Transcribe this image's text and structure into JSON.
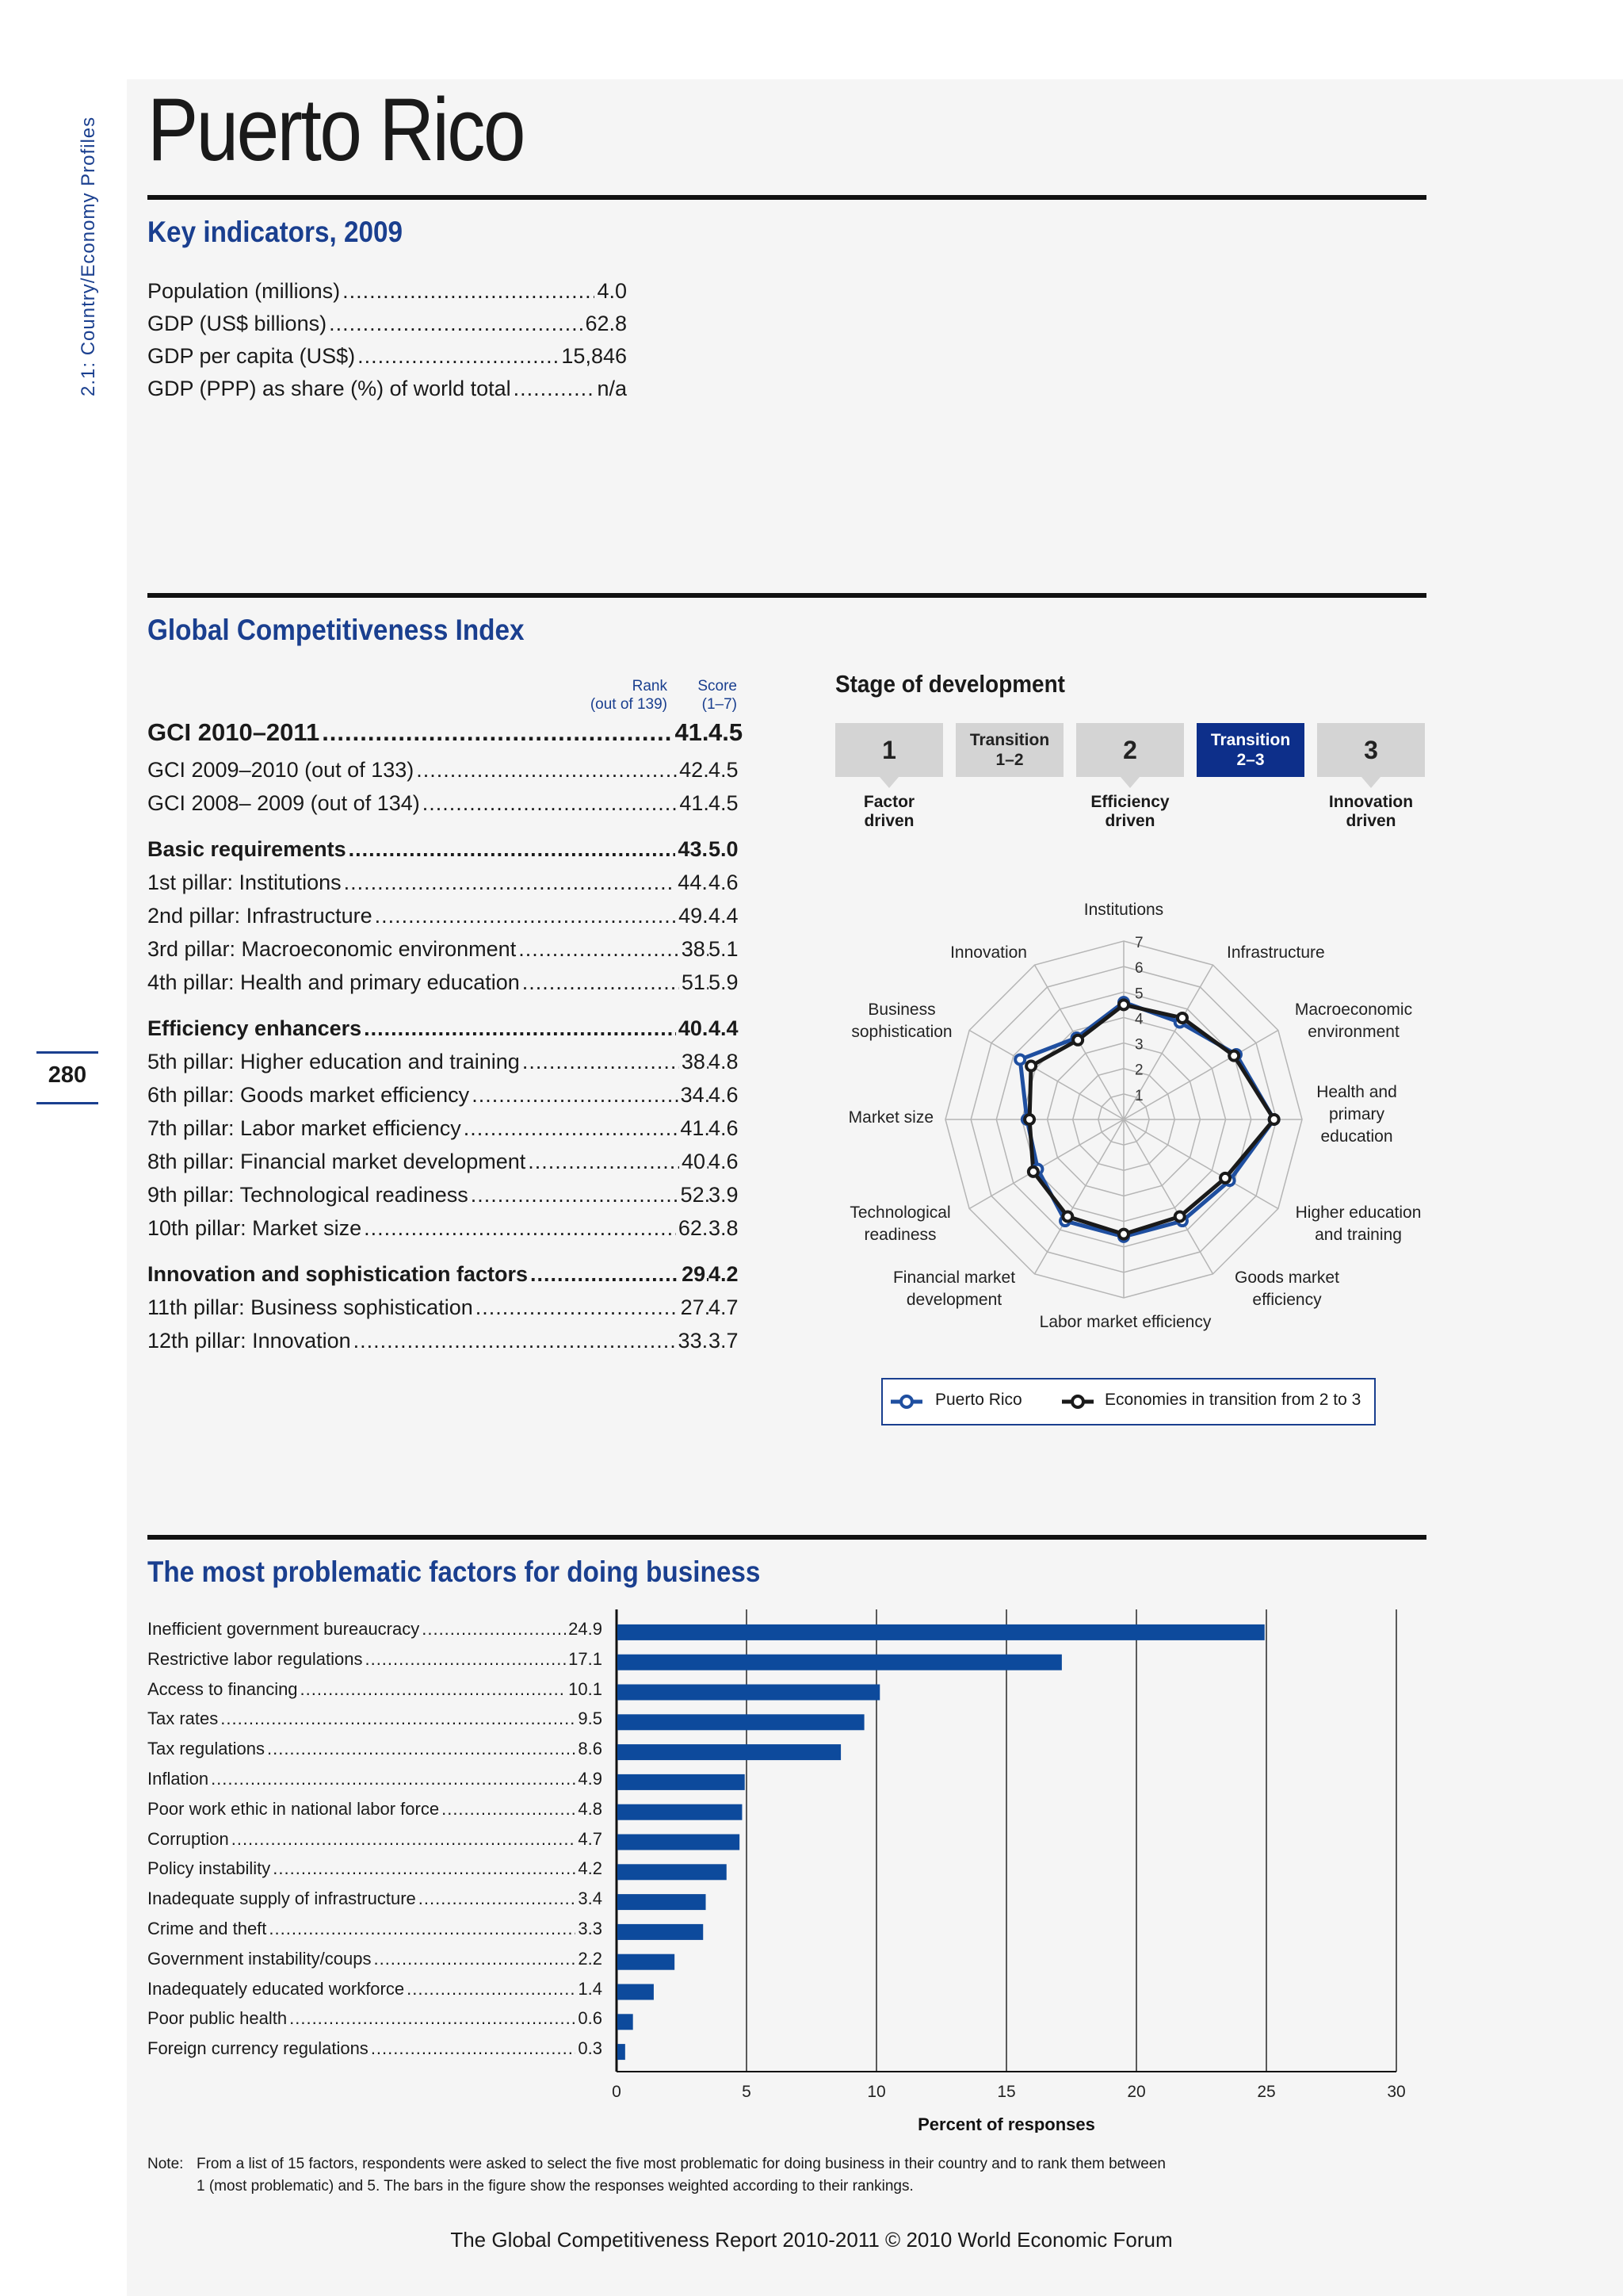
{
  "side_label": "2.1: Country/Economy Profiles",
  "page_number": "280",
  "title": "Puerto Rico",
  "key_indicators": {
    "heading": "Key indicators, 2009",
    "rows": [
      {
        "label": "Population (millions)",
        "value": "4.0"
      },
      {
        "label": "GDP (US$ billions)",
        "value": "62.8"
      },
      {
        "label": "GDP per capita (US$)",
        "value": "15,846"
      },
      {
        "label": "GDP (PPP) as share (%) of world total",
        "value": "n/a"
      }
    ]
  },
  "gci": {
    "heading": "Global Competitiveness Index",
    "rank_header": [
      "Rank",
      "(out of 139)"
    ],
    "score_header": [
      "Score",
      "(1–7)"
    ],
    "rows": [
      {
        "label": "GCI 2010–2011",
        "rank": "41",
        "score": "4.5",
        "style": "main"
      },
      {
        "label": "GCI 2009–2010 (out of 133)",
        "rank": "42",
        "score": "4.5",
        "style": "normal"
      },
      {
        "label": "GCI 2008– 2009 (out of 134)",
        "rank": "41",
        "score": "4.5",
        "style": "normal"
      },
      {
        "label": "Basic requirements",
        "rank": "43",
        "score": "5.0",
        "style": "bold"
      },
      {
        "label": "1st pillar: Institutions",
        "rank": "44",
        "score": "4.6",
        "style": "normal"
      },
      {
        "label": "2nd pillar: Infrastructure",
        "rank": "49",
        "score": "4.4",
        "style": "normal"
      },
      {
        "label": "3rd pillar: Macroeconomic environment",
        "rank": "38",
        "score": "5.1",
        "style": "normal"
      },
      {
        "label": "4th pillar: Health and primary education",
        "rank": "51",
        "score": "5.9",
        "style": "normal"
      },
      {
        "label": "Efficiency enhancers",
        "rank": "40",
        "score": "4.4",
        "style": "bold"
      },
      {
        "label": "5th pillar: Higher education and training",
        "rank": "38",
        "score": "4.8",
        "style": "normal"
      },
      {
        "label": "6th pillar: Goods market efficiency",
        "rank": "34",
        "score": "4.6",
        "style": "normal"
      },
      {
        "label": "7th pillar: Labor market efficiency",
        "rank": "41",
        "score": "4.6",
        "style": "normal"
      },
      {
        "label": "8th pillar: Financial market development",
        "rank": "40",
        "score": "4.6",
        "style": "normal"
      },
      {
        "label": "9th pillar: Technological readiness",
        "rank": "52",
        "score": "3.9",
        "style": "normal"
      },
      {
        "label": "10th pillar: Market size",
        "rank": "62",
        "score": "3.8",
        "style": "normal"
      },
      {
        "label": "Innovation and sophistication factors",
        "rank": "29",
        "score": "4.2",
        "style": "bold"
      },
      {
        "label": "11th pillar: Business sophistication",
        "rank": "27",
        "score": "4.7",
        "style": "normal"
      },
      {
        "label": "12th pillar: Innovation",
        "rank": "33",
        "score": "3.7",
        "style": "normal"
      }
    ]
  },
  "stage": {
    "heading": "Stage of development",
    "boxes": [
      {
        "text": "1",
        "kind": "big",
        "active": false,
        "label": [
          "Factor",
          "driven"
        ]
      },
      {
        "text": "Transition\n1–2",
        "kind": "small",
        "active": false,
        "label": []
      },
      {
        "text": "2",
        "kind": "big",
        "active": false,
        "label": [
          "Efficiency",
          "driven"
        ]
      },
      {
        "text": "Transition\n2–3",
        "kind": "small",
        "active": true,
        "label": []
      },
      {
        "text": "3",
        "kind": "big",
        "active": false,
        "label": [
          "Innovation",
          "driven"
        ]
      }
    ]
  },
  "colors": {
    "brand_blue": "#1a3f8f",
    "series_blue": "#1f4fa0",
    "series_black": "#1a1a1a",
    "bar_blue": "#0d4a9c",
    "active_stage": "#0d2f8a"
  },
  "chart_data": [
    {
      "type": "radar",
      "axes": [
        "Institutions",
        "Infrastructure",
        "Macroeconomic environment",
        "Health and primary education",
        "Higher education and training",
        "Goods market efficiency",
        "Labor market efficiency",
        "Financial market development",
        "Technological readiness",
        "Market size",
        "Business sophistication",
        "Innovation"
      ],
      "scale_ticks": [
        "1",
        "2",
        "3",
        "4",
        "5",
        "6",
        "7"
      ],
      "range": [
        1,
        7
      ],
      "series": [
        {
          "name": "Puerto Rico",
          "values": [
            4.6,
            4.4,
            5.1,
            5.9,
            4.8,
            4.6,
            4.6,
            4.6,
            3.9,
            3.8,
            4.7,
            3.7
          ]
        },
        {
          "name": "Economies in transition from 2 to 3",
          "values": [
            4.5,
            4.6,
            5.0,
            5.9,
            4.6,
            4.4,
            4.5,
            4.4,
            4.1,
            3.7,
            4.2,
            3.6
          ]
        }
      ],
      "legend_position": "bottom"
    },
    {
      "type": "bar",
      "orientation": "horizontal",
      "title": "The most problematic factors for doing business",
      "categories": [
        "Inefficient government bureaucracy",
        "Restrictive labor regulations",
        "Access to financing",
        "Tax rates",
        "Tax regulations",
        "Inflation",
        "Poor work ethic in national labor force",
        "Corruption",
        "Policy instability",
        "Inadequate supply of infrastructure",
        "Crime and theft",
        "Government instability/coups",
        "Inadequately educated workforce",
        "Poor public health",
        "Foreign currency regulations"
      ],
      "values": [
        24.9,
        17.1,
        10.1,
        9.5,
        8.6,
        4.9,
        4.8,
        4.7,
        4.2,
        3.4,
        3.3,
        2.2,
        1.4,
        0.6,
        0.3
      ],
      "value_labels": [
        "24.9",
        "17.1",
        "10.1",
        "9.5",
        "8.6",
        "4.9",
        "4.8",
        "4.7",
        "4.2",
        "3.4",
        "3.3",
        "2.2",
        "1.4",
        "0.6",
        "0.3"
      ],
      "xlabel": "Percent of responses",
      "xlim": [
        0,
        30
      ],
      "xticks": [
        "0",
        "5",
        "10",
        "15",
        "20",
        "25",
        "30"
      ],
      "grid": true
    }
  ],
  "note": {
    "prefix": "Note:",
    "line1": "From a list of 15 factors, respondents were asked to select the five most problematic for doing business in their country and to rank them between",
    "line2": "1 (most problematic) and 5. The bars in the figure show the responses weighted according to their rankings."
  },
  "footer": "The Global Competitiveness Report 2010-2011 © 2010 World Economic Forum"
}
